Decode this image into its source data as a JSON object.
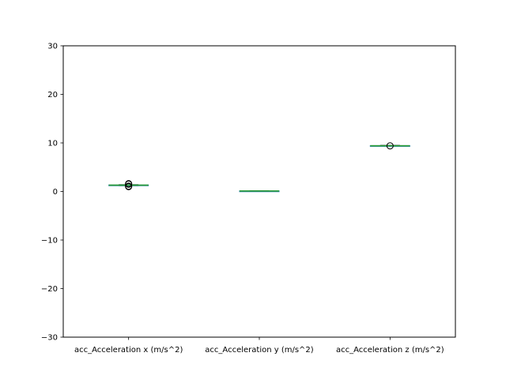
{
  "chart_data": {
    "type": "boxplot",
    "categories": [
      "acc_Acceleration x (m/s^2)",
      "acc_Acceleration y (m/s^2)",
      "acc_Acceleration z (m/s^2)"
    ],
    "boxes": [
      {
        "whislo": 1.2,
        "q1": 1.25,
        "med": 1.3,
        "q3": 1.35,
        "whishi": 1.4,
        "fliers": [
          1.0,
          1.1,
          1.5,
          1.6
        ]
      },
      {
        "whislo": 0.05,
        "q1": 0.08,
        "med": 0.1,
        "q3": 0.12,
        "whishi": 0.15,
        "fliers": []
      },
      {
        "whislo": 9.35,
        "q1": 9.4,
        "med": 9.42,
        "q3": 9.45,
        "whishi": 9.5,
        "fliers": [
          9.4
        ]
      }
    ],
    "ylim": [
      -30,
      30
    ],
    "yticks": [
      -30,
      -20,
      -10,
      0,
      10,
      20,
      30
    ],
    "ytick_labels": [
      "−30",
      "−20",
      "−10",
      "0",
      "10",
      "20",
      "30"
    ],
    "grid": false,
    "title": "",
    "xlabel": "",
    "ylabel": "",
    "colors": {
      "box": "#1f77b4",
      "median": "#2ca02c",
      "whisker": "#000000",
      "flier": "#000000"
    }
  }
}
